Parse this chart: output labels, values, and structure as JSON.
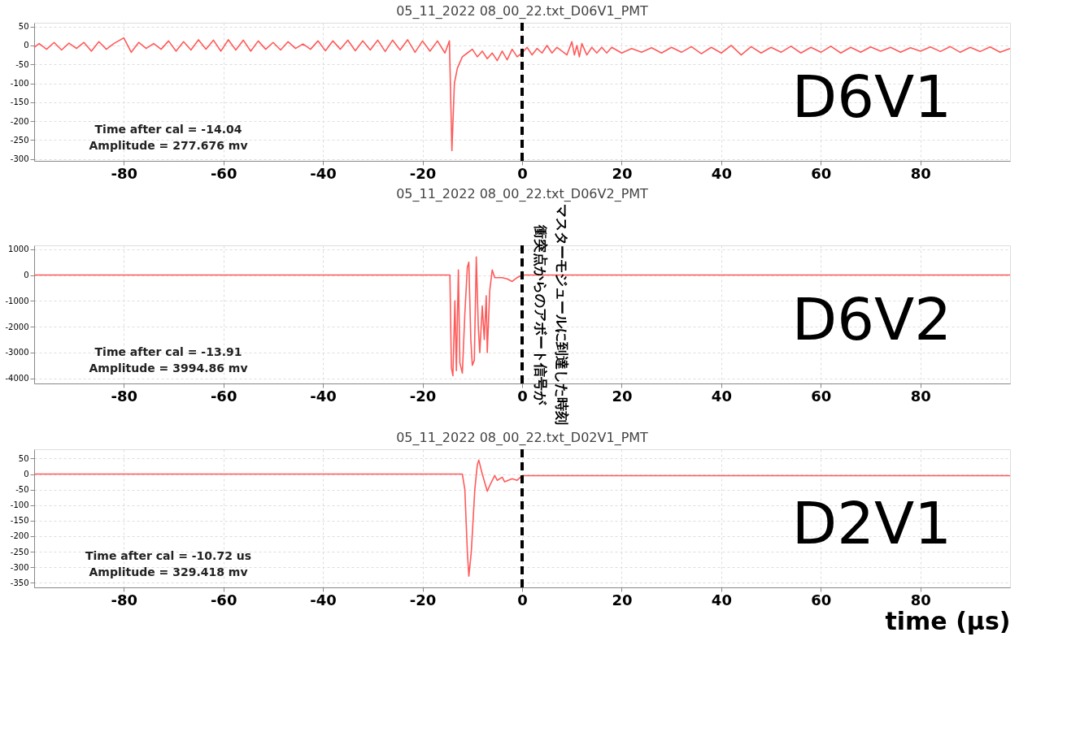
{
  "chart_data": [
    {
      "type": "line",
      "title": "05_11_2022 08_00_22.txt_D06V1_PMT",
      "xlim": [
        -98,
        98
      ],
      "ylim": [
        -305,
        60
      ],
      "xticks": [
        -80,
        -60,
        -40,
        -20,
        0,
        20,
        40,
        60,
        80
      ],
      "yticks": [
        50,
        0,
        -50,
        -100,
        -150,
        -200,
        -250,
        -300
      ],
      "grid": true,
      "x": [
        -98,
        -97,
        -95.5,
        -94,
        -92.5,
        -91,
        -89.5,
        -88,
        -86.5,
        -85,
        -83.5,
        -82,
        -80,
        -78.5,
        -77,
        -75.5,
        -74,
        -72.5,
        -71,
        -69.5,
        -68,
        -66.5,
        -65,
        -63.5,
        -62,
        -60.5,
        -59,
        -57.5,
        -56,
        -54.5,
        -53,
        -51.5,
        -50,
        -48.5,
        -47,
        -45.5,
        -44,
        -42.5,
        -41,
        -39.5,
        -38,
        -36.5,
        -35,
        -33.5,
        -32,
        -30.5,
        -29,
        -27.5,
        -26,
        -24.5,
        -23,
        -21.5,
        -20,
        -18.5,
        -17,
        -15.5,
        -14.6,
        -14.1,
        -13.6,
        -13,
        -12,
        -11,
        -10,
        -9,
        -8,
        -7,
        -6,
        -5,
        -4,
        -3,
        -2,
        -1,
        0,
        1,
        2,
        3,
        4,
        5,
        6,
        7,
        8,
        9,
        10,
        10.5,
        11,
        11.5,
        12,
        13,
        14,
        15,
        16,
        17,
        18,
        20,
        22,
        24,
        26,
        28,
        30,
        32,
        34,
        36,
        38,
        40,
        42,
        44,
        46,
        48,
        50,
        52,
        54,
        56,
        58,
        60,
        62,
        64,
        66,
        68,
        70,
        72,
        74,
        76,
        78,
        80,
        82,
        84,
        86,
        88,
        90,
        92,
        94,
        96,
        98
      ],
      "series": [
        {
          "color": "#ff5a5a",
          "values": [
            -5,
            5,
            -10,
            8,
            -12,
            6,
            -8,
            8,
            -15,
            10,
            -10,
            5,
            20,
            -18,
            8,
            -8,
            5,
            -10,
            12,
            -15,
            10,
            -12,
            15,
            -10,
            14,
            -15,
            15,
            -12,
            14,
            -15,
            12,
            -10,
            8,
            -12,
            10,
            -8,
            4,
            -10,
            12,
            -14,
            12,
            -10,
            14,
            -14,
            12,
            -12,
            14,
            -16,
            14,
            -12,
            15,
            -18,
            12,
            -15,
            12,
            -20,
            12,
            -278,
            -100,
            -60,
            -30,
            -20,
            -10,
            -30,
            -15,
            -35,
            -20,
            -40,
            -15,
            -38,
            -10,
            -30,
            -20,
            -5,
            -25,
            -8,
            -20,
            0,
            -20,
            -5,
            -15,
            -25,
            10,
            -25,
            0,
            -30,
            5,
            -25,
            -5,
            -20,
            -5,
            -20,
            -5,
            -20,
            -8,
            -18,
            -6,
            -20,
            -5,
            -18,
            -3,
            -22,
            -5,
            -20,
            0,
            -25,
            -3,
            -20,
            -5,
            -18,
            -2,
            -20,
            -5,
            -18,
            -2,
            -20,
            -5,
            -18,
            -4,
            -15,
            -5,
            -18,
            -6,
            -15,
            -4,
            -16,
            -3,
            -18,
            -5,
            -16,
            -4,
            -18,
            -8
          ]
        }
      ],
      "ref_lines": [
        {
          "axis": "x",
          "value": 0,
          "color": "#000000",
          "line_style": "dashed"
        }
      ],
      "annotations": [
        "Time after cal = -14.04",
        "Amplitude = 277.676 mv",
        "D6V1"
      ]
    },
    {
      "type": "line",
      "title": "05_11_2022 08_00_22.txt_D06V2_PMT",
      "xlim": [
        -98,
        98
      ],
      "ylim": [
        -4200,
        1150
      ],
      "xticks": [
        -80,
        -60,
        -40,
        -20,
        0,
        20,
        40,
        60,
        80
      ],
      "yticks": [
        1000,
        0,
        -1000,
        -2000,
        -3000,
        -4000
      ],
      "grid": true,
      "x": [
        -98,
        -14.5,
        -14.2,
        -13.9,
        -13.5,
        -13.2,
        -12.8,
        -12.5,
        -12,
        -11.5,
        -11,
        -10.7,
        -10.3,
        -10,
        -9.6,
        -9.2,
        -8.8,
        -8.5,
        -8,
        -7.6,
        -7.2,
        -7,
        -6.5,
        -6,
        -5.5,
        -4,
        -3,
        -2,
        -1,
        0,
        98
      ],
      "series": [
        {
          "color": "#ff5a5a",
          "values": [
            0,
            0,
            -3600,
            -3900,
            -1000,
            -3700,
            200,
            -3400,
            -3800,
            -1500,
            300,
            500,
            -2500,
            -3500,
            -3300,
            700,
            -2000,
            -3000,
            -1200,
            -2500,
            -800,
            -3000,
            -600,
            200,
            -100,
            -100,
            -150,
            -250,
            -100,
            0,
            0
          ]
        }
      ],
      "ref_lines": [
        {
          "axis": "x",
          "value": 0,
          "color": "#000000",
          "line_style": "dashed",
          "label": "衝突点からのアボート信号が"
        }
      ],
      "annotations": [
        "Time after cal = -13.91",
        "Amplitude = 3994.86 mv",
        "D6V2",
        {
          "text": "マスターモジュールに到達した時刻",
          "x": 0
        }
      ]
    },
    {
      "type": "line",
      "title": "05_11_2022 08_00_22.txt_D02V1_PMT",
      "xlabel": "time (μs)",
      "xlim": [
        -98,
        98
      ],
      "ylim": [
        -365,
        80
      ],
      "xticks": [
        -80,
        -60,
        -40,
        -20,
        0,
        20,
        40,
        60,
        80
      ],
      "yticks": [
        50,
        0,
        -50,
        -100,
        -150,
        -200,
        -250,
        -300,
        -350
      ],
      "grid": true,
      "x": [
        -98,
        -12,
        -11.5,
        -11,
        -10.7,
        -10.2,
        -9.5,
        -9,
        -8.7,
        -8,
        -7,
        -6.3,
        -5.5,
        -5,
        -4,
        -3.5,
        -2,
        -1,
        0,
        98
      ],
      "series": [
        {
          "color": "#ff5a5a",
          "values": [
            0,
            0,
            -50,
            -250,
            -329,
            -250,
            -50,
            30,
            45,
            0,
            -55,
            -30,
            -5,
            -20,
            -10,
            -25,
            -15,
            -20,
            -5,
            -5
          ]
        }
      ],
      "ref_lines": [
        {
          "axis": "x",
          "value": 0,
          "color": "#000000",
          "line_style": "dashed"
        }
      ],
      "annotations": [
        "Time after cal = -10.72 us",
        "Amplitude = 329.418 mv",
        "D2V1"
      ]
    }
  ]
}
